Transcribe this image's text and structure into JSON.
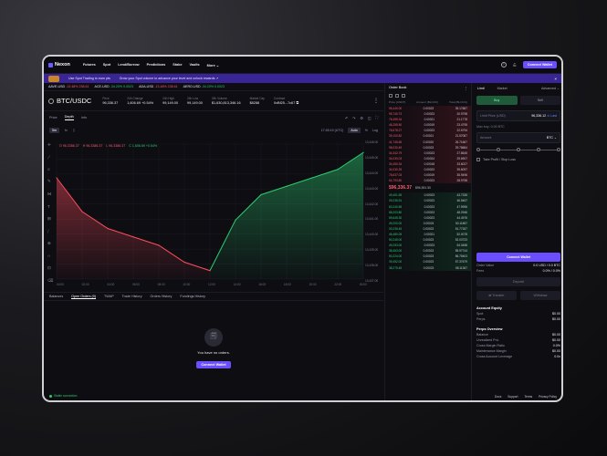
{
  "nav": {
    "logo": "Nexon",
    "links": [
      "Futures",
      "Spot",
      "Lend/Borrow",
      "Predictions",
      "Stake",
      "Vaults",
      "More ⌄"
    ],
    "connect": "Connect Wallet"
  },
  "banner": {
    "left": "Use Spot Trading to earn pts",
    "center": "Grow your Spot volume to advance your level and unlock rewards ↗",
    "close": "×"
  },
  "ticker": [
    {
      "sym": "AAVE-USD",
      "chg": "-13.48%",
      "price": "238.61"
    },
    {
      "sym": "ACE-USD",
      "chg": "-34.20%",
      "price": "0.0023"
    },
    {
      "sym": "ADA-USD",
      "chg": "-13.48%",
      "price": "238.61"
    },
    {
      "sym": "AERO-USD",
      "chg": "-34.20%",
      "price": "0.0023"
    }
  ],
  "pair": {
    "name": "BTC/USDC",
    "stats": [
      {
        "label": "Price",
        "value": "96,336.37"
      },
      {
        "label": "24h Change",
        "value": "1,606.69 +0.54%"
      },
      {
        "label": "24h High",
        "value": "99,149.00"
      },
      {
        "label": "24h Low",
        "value": "99,149.00"
      },
      {
        "label": "24h Volume",
        "value": "$1,630,813,346.16"
      },
      {
        "label": "Market Cap",
        "value": "$8288"
      },
      {
        "label": "Contract",
        "value": "0xBf25...7c67 ⧉"
      }
    ]
  },
  "chart_tabs": {
    "price": "Price",
    "depth": "Depth",
    "info": "Info"
  },
  "chart_ctrl": {
    "interval": "5m",
    "fx": "fx",
    "time": "17:45:19 (UTC)",
    "auto": "Auto",
    "pct": "%",
    "log": "Log"
  },
  "legend": {
    "o": "O 96,3386.37",
    "h": "H 96,3386.37",
    "l": "L 96,3386.37",
    "c": "C 1,606.69 +0.54%"
  },
  "chart_data": {
    "type": "area",
    "x": [
      "00:00",
      "02:00",
      "04:00",
      "06:00",
      "08:00",
      "10:00",
      "12:00",
      "14:00",
      "16:00",
      "18:00",
      "20:00",
      "22:00",
      "00:00"
    ],
    "y": [
      13448,
      13444,
      13442,
      13441,
      13440,
      13438,
      13437,
      13443,
      13446,
      13447,
      13448,
      13449,
      13451
    ],
    "yticks": [
      "13,446.00",
      "13,445.00",
      "13,444.00",
      "13,443.00",
      "13,442.00",
      "13,441.00",
      "13,440.00",
      "13,439.00",
      "13,438.00",
      "13,437.00"
    ],
    "colors": {
      "down": "#ff4d5e",
      "up": "#2ecc71"
    }
  },
  "bottom_tabs": [
    "Balances",
    "Open Orders (0)",
    "TWAP",
    "Trade History",
    "Orders History",
    "Fundings History"
  ],
  "empty": {
    "text": "You have no orders.",
    "button": "Connect Wallet"
  },
  "status": "Stable connection",
  "orderbook": {
    "title": "Order Book",
    "cols": [
      "Price (USDT)",
      "Amount (BLOCK)",
      "Total (BLOCK)"
    ],
    "asks": [
      [
        "95,440.00",
        "0.00023",
        "39.17687"
      ],
      [
        "95,740.73",
        "0.00023",
        "20.9798"
      ],
      [
        "76,495.34",
        "0.00021",
        "21.1778"
      ],
      [
        "46,255.50",
        "0.00019",
        "23.4795"
      ],
      [
        "76,678.27",
        "0.00023",
        "22.6794"
      ],
      [
        "39,100.82",
        "0.00021",
        "21.57087"
      ],
      [
        "41,746.65",
        "0.00020",
        "26.71667"
      ],
      [
        "98,030.49",
        "0.00023",
        "29.78684"
      ],
      [
        "34,342.79",
        "0.00023",
        "27.8645"
      ],
      [
        "34,030.03",
        "0.00024",
        "29.6907"
      ],
      [
        "34,450.34",
        "0.00018",
        "33.6027"
      ],
      [
        "34,030.25",
        "0.00023",
        "39.6097"
      ],
      [
        "78,637.03",
        "0.00019",
        "35.9496"
      ],
      [
        "64,793.80",
        "0.00023",
        "28.9758"
      ]
    ],
    "mark": "$96,336.37",
    "ref": "$96,551.50",
    "bids": [
      [
        "49,451.55",
        "0.00023",
        "43.7335"
      ],
      [
        "09,235.91",
        "0.00023",
        "46.5467"
      ],
      [
        "60,240.55",
        "0.00023",
        "47.9996"
      ],
      [
        "68,203.80",
        "0.00023",
        "48.2946"
      ],
      [
        "59,645.30",
        "0.00023",
        "44.4976"
      ],
      [
        "49,200.00",
        "0.00024",
        "50.11867"
      ],
      [
        "00,235.45",
        "0.00023",
        "51.77187"
      ],
      [
        "46,480.05",
        "0.00021",
        "52.0078"
      ],
      [
        "50,245.00",
        "0.00023",
        "52.03733"
      ],
      [
        "49,253.00",
        "0.00023",
        "54.0488"
      ],
      [
        "38,463.00",
        "0.00023",
        "55.97744"
      ],
      [
        "50,224.00",
        "0.00023",
        "56.75403"
      ],
      [
        "39,452.00",
        "0.00023",
        "57.37679"
      ],
      [
        "38,275.45",
        "0.00023",
        "58.11367"
      ]
    ]
  },
  "trade": {
    "tabs": [
      "Limit",
      "Market",
      "Advanced ⌄"
    ],
    "buy": "Buy",
    "sell": "Sell",
    "limit_label": "Limit Price (USD)",
    "limit_value": "96,336.12",
    "limit_link": "⊙ Last",
    "max_buy": "Max buy: 0.00 BTC",
    "amount_label": "Amount",
    "amount_unit": "BTC ⌄",
    "tpsl": "Take Profit / Stop Loss",
    "connect": "Connect Wallet",
    "order_value_label": "Order Value",
    "order_value": "0.0 USD / 0.0 BTC",
    "fees_label": "Fees",
    "fees": "0.0% / 0.0%",
    "deposit": "Deposit",
    "transfer": "⇄ Transfer",
    "withdraw": "Withdraw",
    "equity_title": "Account Equity",
    "equity": [
      [
        "Spot",
        "$0.00"
      ],
      [
        "Perps",
        "$0.00"
      ]
    ],
    "perps_title": "Perps Overview",
    "perps": [
      [
        "Balance",
        "$0.00"
      ],
      [
        "Unrealized PnL",
        "$0.00"
      ],
      [
        "Cross Margin Ratio",
        "0.0%"
      ],
      [
        "Maintenance Margin",
        "$0.00"
      ],
      [
        "Cross Account Leverage",
        "0.0x"
      ]
    ]
  },
  "footer": [
    "Docs",
    "Support",
    "Terms",
    "Privacy Policy"
  ]
}
